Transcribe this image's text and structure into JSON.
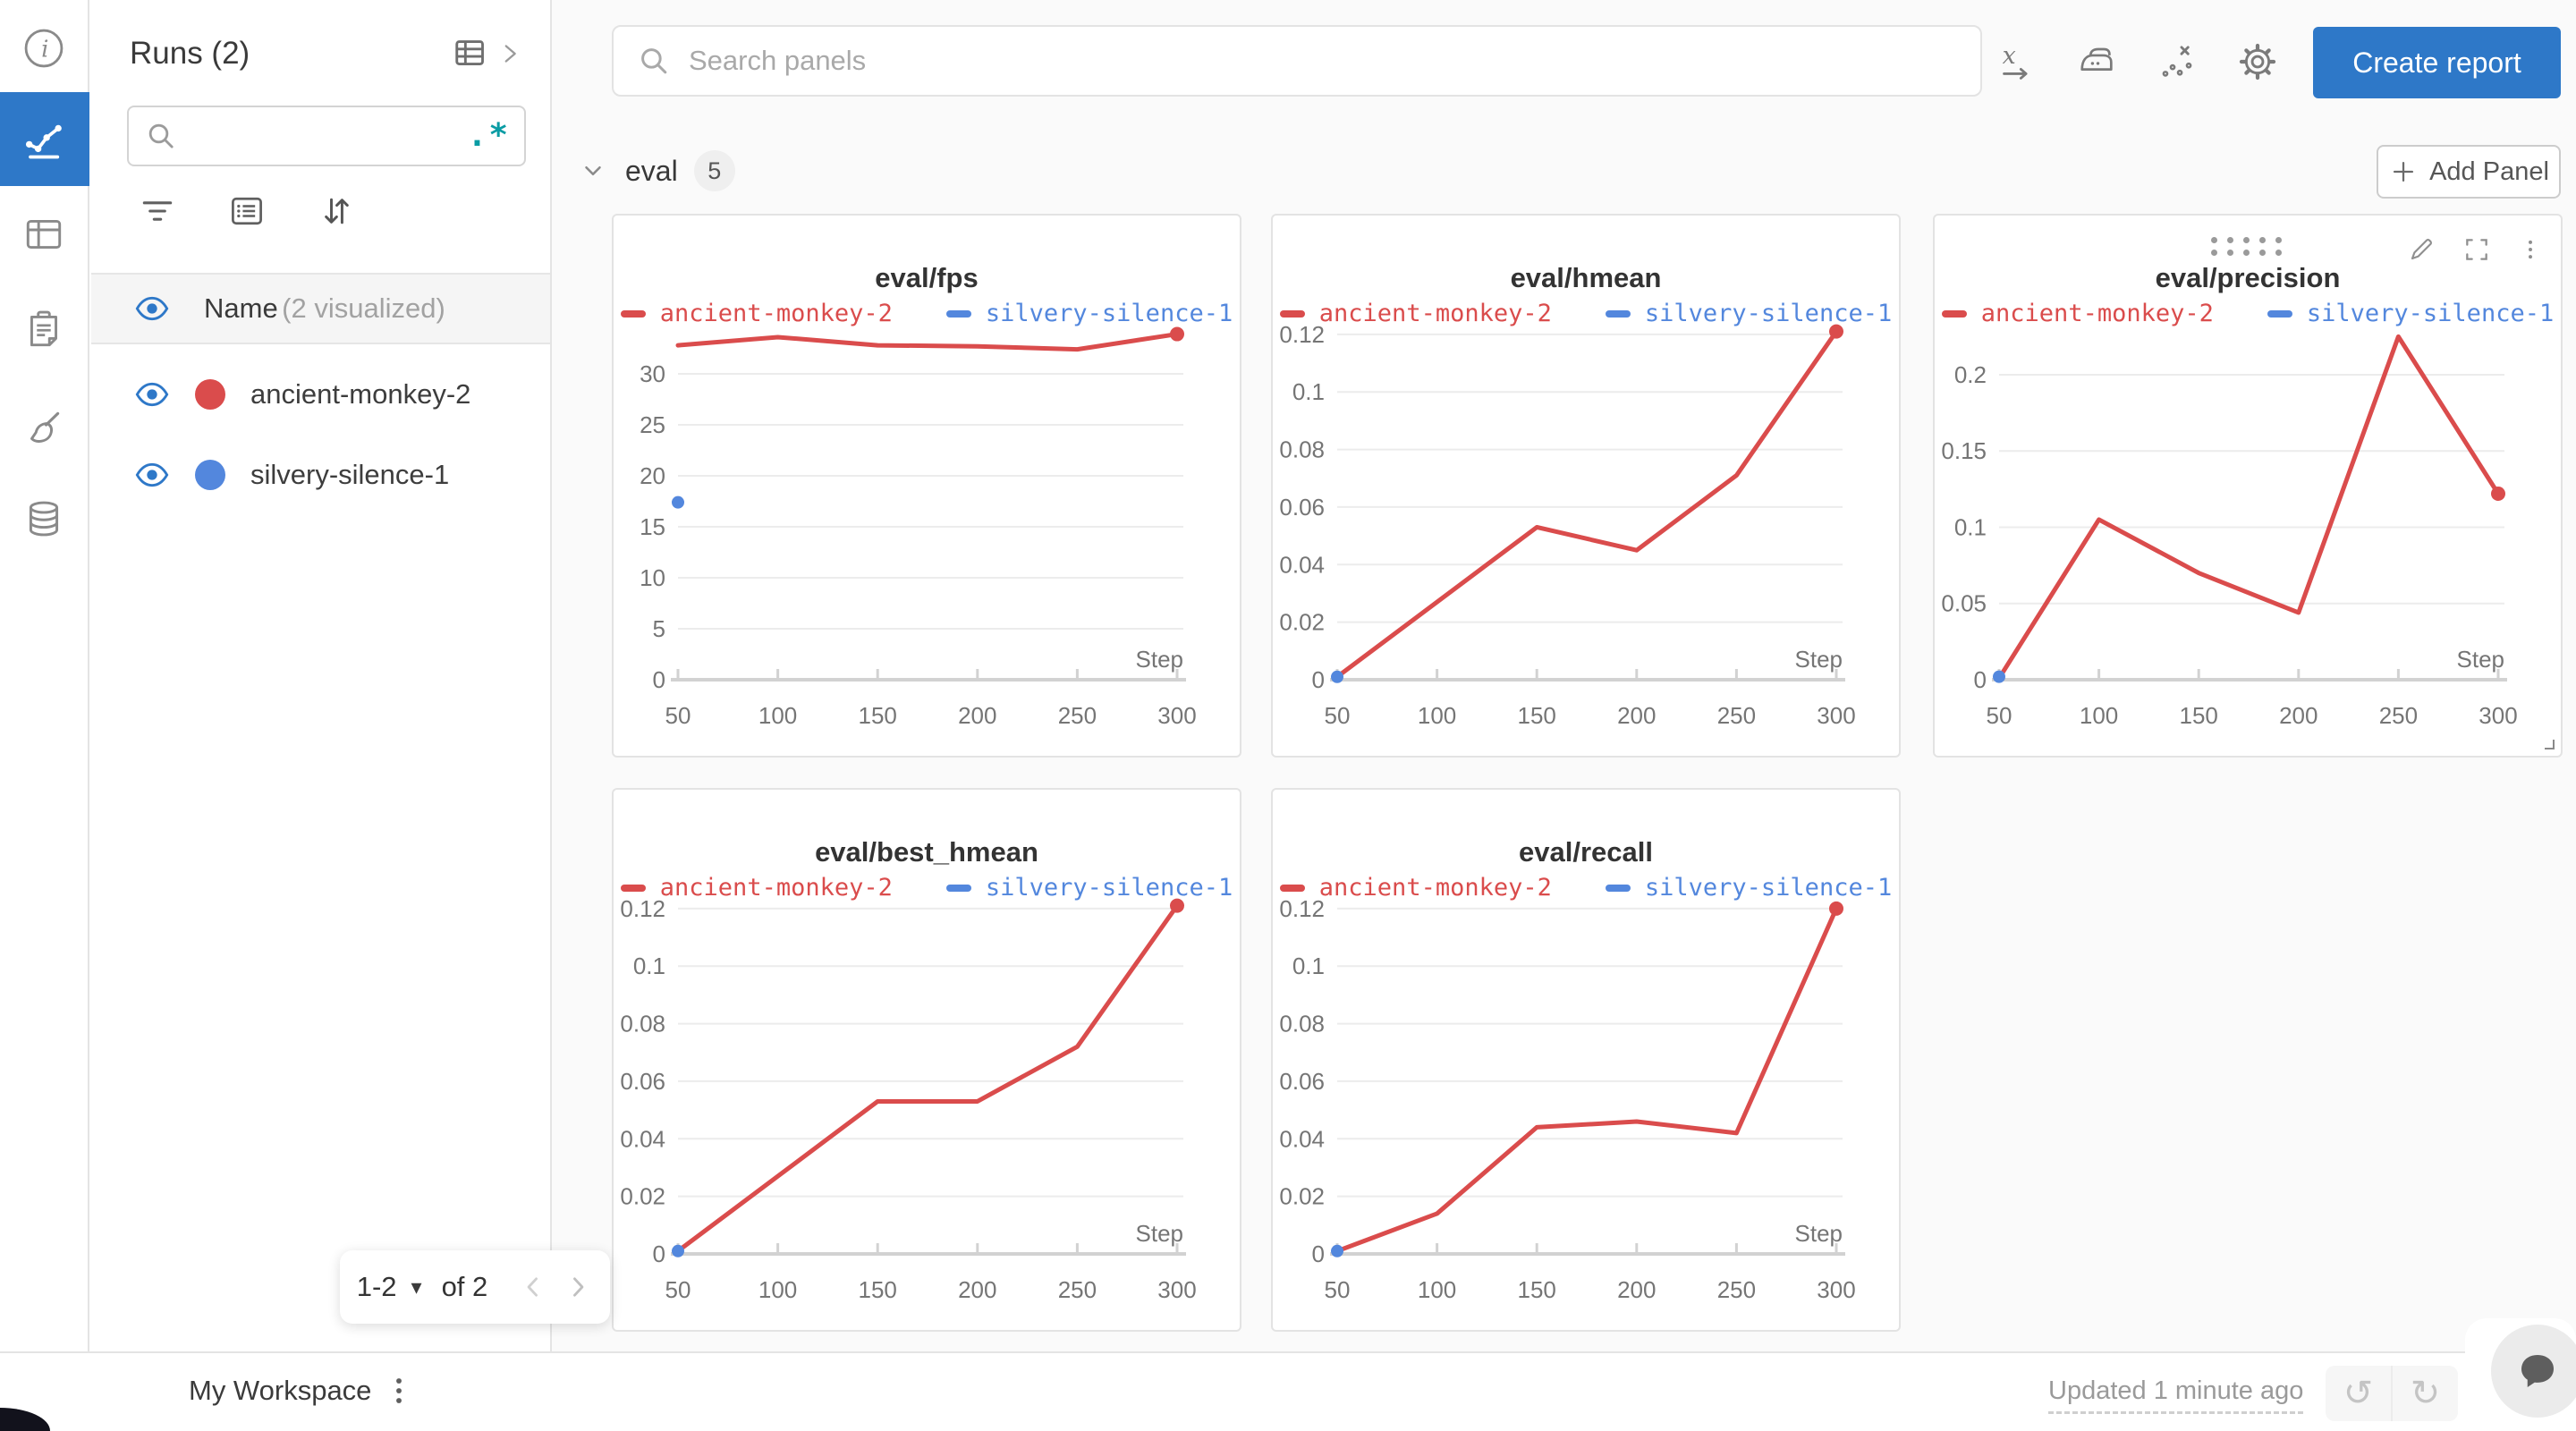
{
  "colors": {
    "accent_blue": "#2e78c8",
    "run_red": "#da4c4c",
    "run_blue": "#5387dd",
    "teal": "#0a9ca4",
    "grid": "#ececec",
    "axis": "#d2d2d2",
    "tick_text": "#757575"
  },
  "rail": {
    "items": [
      "info-icon",
      "workspace-icon",
      "runs-table-icon",
      "logs-icon",
      "sweeps-icon",
      "artifacts-icon"
    ],
    "active_item": "workspace-icon"
  },
  "runs_panel": {
    "title": "Runs (2)",
    "search_value": "",
    "regex_toggle": ".*",
    "header_row": {
      "label": "Name",
      "sublabel": "(2 visualized)"
    },
    "runs": [
      {
        "name": "ancient-monkey-2",
        "color": "#da4c4c"
      },
      {
        "name": "silvery-silence-1",
        "color": "#5387dd"
      }
    ],
    "pagination": {
      "range": "1-2",
      "caret": "▾",
      "of": "of 2"
    }
  },
  "topbar": {
    "search_placeholder": "Search panels",
    "icons": [
      "x-axis-icon",
      "smoothing-icon",
      "outliers-icon",
      "settings-icon"
    ],
    "create_report_label": "Create report"
  },
  "section": {
    "label": "eval",
    "count": "5",
    "add_panel_label": "Add Panel"
  },
  "chart_data": [
    {
      "type": "line",
      "title": "eval/fps",
      "x_label": "Step",
      "x_ticks": [
        50,
        100,
        150,
        200,
        250,
        300
      ],
      "y_ticks": [
        0,
        5,
        10,
        15,
        20,
        25,
        30
      ],
      "ylim": [
        0,
        35
      ],
      "series": [
        {
          "name": "ancient-monkey-2",
          "color": "#da4c4c",
          "x": [
            50,
            100,
            150,
            200,
            250,
            300
          ],
          "y": [
            32.8,
            33.6,
            32.8,
            32.7,
            32.4,
            33.9
          ],
          "end_marker": true
        },
        {
          "name": "silvery-silence-1",
          "color": "#5387dd",
          "x": [
            50
          ],
          "y": [
            17.4
          ],
          "point_only": true
        }
      ]
    },
    {
      "type": "line",
      "title": "eval/hmean",
      "x_label": "Step",
      "x_ticks": [
        50,
        100,
        150,
        200,
        250,
        300
      ],
      "y_ticks": [
        0,
        0.02,
        0.04,
        0.06,
        0.08,
        0.1,
        0.12
      ],
      "ylim": [
        0,
        0.124
      ],
      "series": [
        {
          "name": "ancient-monkey-2",
          "color": "#da4c4c",
          "x": [
            50,
            100,
            150,
            200,
            250,
            300
          ],
          "y": [
            0.001,
            0.027,
            0.053,
            0.045,
            0.071,
            0.121
          ],
          "end_marker": true
        },
        {
          "name": "silvery-silence-1",
          "color": "#5387dd",
          "x": [
            50
          ],
          "y": [
            0.001
          ],
          "point_only": true
        }
      ]
    },
    {
      "type": "line",
      "title": "eval/precision",
      "x_label": "Step",
      "x_ticks": [
        50,
        100,
        150,
        200,
        250,
        300
      ],
      "y_ticks": [
        0,
        0.05,
        0.1,
        0.15,
        0.2
      ],
      "ylim": [
        0,
        0.234
      ],
      "hovered": true,
      "series": [
        {
          "name": "ancient-monkey-2",
          "color": "#da4c4c",
          "x": [
            50,
            100,
            150,
            200,
            250,
            300
          ],
          "y": [
            0.001,
            0.105,
            0.07,
            0.044,
            0.225,
            0.122
          ],
          "end_marker": true
        },
        {
          "name": "silvery-silence-1",
          "color": "#5387dd",
          "x": [
            50
          ],
          "y": [
            0.002
          ],
          "point_only": true
        }
      ]
    },
    {
      "type": "line",
      "title": "eval/best_hmean",
      "x_label": "Step",
      "x_ticks": [
        50,
        100,
        150,
        200,
        250,
        300
      ],
      "y_ticks": [
        0,
        0.02,
        0.04,
        0.06,
        0.08,
        0.1,
        0.12
      ],
      "ylim": [
        0,
        0.124
      ],
      "series": [
        {
          "name": "ancient-monkey-2",
          "color": "#da4c4c",
          "x": [
            50,
            100,
            150,
            200,
            250,
            300
          ],
          "y": [
            0.001,
            0.027,
            0.053,
            0.053,
            0.072,
            0.121
          ],
          "end_marker": true
        },
        {
          "name": "silvery-silence-1",
          "color": "#5387dd",
          "x": [
            50
          ],
          "y": [
            0.001
          ],
          "point_only": true
        }
      ]
    },
    {
      "type": "line",
      "title": "eval/recall",
      "x_label": "Step",
      "x_ticks": [
        50,
        100,
        150,
        200,
        250,
        300
      ],
      "y_ticks": [
        0,
        0.02,
        0.04,
        0.06,
        0.08,
        0.1,
        0.12
      ],
      "ylim": [
        0,
        0.124
      ],
      "series": [
        {
          "name": "ancient-monkey-2",
          "color": "#da4c4c",
          "x": [
            50,
            100,
            150,
            200,
            250,
            300
          ],
          "y": [
            0.001,
            0.014,
            0.044,
            0.046,
            0.042,
            0.12
          ],
          "end_marker": true
        },
        {
          "name": "silvery-silence-1",
          "color": "#5387dd",
          "x": [
            50
          ],
          "y": [
            0.001
          ],
          "point_only": true
        }
      ]
    }
  ],
  "bottombar": {
    "workspace_label": "My Workspace",
    "updated_label": "Updated 1 minute ago",
    "undo_icon": "↺",
    "redo_icon": "↻"
  }
}
